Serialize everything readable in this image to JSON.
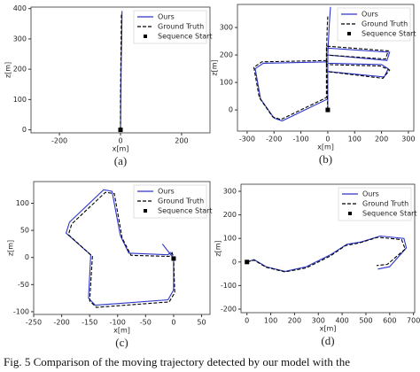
{
  "chart_data": [
    {
      "type": "line",
      "xlabel": "x[m]",
      "ylabel": "z[m]",
      "panel_label": "(a)",
      "xlim": [
        -293,
        293
      ],
      "ylim": [
        -10,
        405
      ],
      "xticks": [
        -200,
        0,
        200
      ],
      "yticks": [
        0,
        100,
        200,
        300,
        400
      ],
      "legend": "upper right",
      "series": [
        {
          "name": "Ours",
          "color": "#2b35c8",
          "x": [
            0,
            1,
            2,
            4,
            5
          ],
          "values": [
            0,
            100,
            200,
            300,
            392
          ]
        },
        {
          "name": "Ground Truth",
          "color": "#000000",
          "dashed": true,
          "x": [
            0,
            0,
            1,
            2,
            3
          ],
          "values": [
            0,
            100,
            200,
            300,
            385
          ]
        },
        {
          "name": "Sequence Start",
          "color": "#000000",
          "marker": "square",
          "x": [
            0
          ],
          "values": [
            0
          ]
        }
      ]
    },
    {
      "type": "line",
      "xlabel": "x[m]",
      "ylabel": "z[m]",
      "panel_label": "(b)",
      "xlim": [
        -336,
        320
      ],
      "ylim": [
        -77,
        384
      ],
      "xticks": [
        -300,
        -200,
        -100,
        0,
        100,
        200,
        300
      ],
      "yticks": [
        0,
        100,
        200,
        300
      ],
      "legend": "upper right",
      "series": [
        {
          "name": "Ours",
          "color": "#2b35c8",
          "x": [
            0,
            0,
            220,
            230,
            0,
            0,
            210,
            225,
            200,
            0,
            0,
            -240,
            -270,
            -250,
            -200,
            -170,
            0,
            0,
            5,
            10
          ],
          "values": [
            0,
            200,
            180,
            210,
            225,
            140,
            120,
            150,
            165,
            170,
            175,
            170,
            150,
            40,
            -30,
            -40,
            40,
            200,
            300,
            375
          ]
        },
        {
          "name": "Ground Truth",
          "color": "#000000",
          "dashed": true,
          "x": [
            0,
            -5,
            215,
            225,
            -5,
            -5,
            205,
            230,
            195,
            -5,
            -5,
            -245,
            -275,
            -255,
            -205,
            -175,
            -5,
            -5,
            -2,
            0
          ],
          "values": [
            0,
            200,
            185,
            215,
            232,
            140,
            115,
            145,
            160,
            165,
            180,
            175,
            155,
            45,
            -25,
            -35,
            45,
            200,
            300,
            340
          ]
        },
        {
          "name": "Sequence Start",
          "color": "#000000",
          "marker": "square",
          "x": [
            0
          ],
          "values": [
            0
          ]
        }
      ]
    },
    {
      "type": "line",
      "xlabel": "x[m]",
      "ylabel": "z[m]",
      "panel_label": "(c)",
      "xlim": [
        -250,
        65
      ],
      "ylim": [
        -105,
        140
      ],
      "xticks": [
        -250,
        -200,
        -150,
        -100,
        -50,
        0,
        50
      ],
      "yticks": [
        -100,
        -50,
        0,
        50,
        100
      ],
      "legend": "upper right",
      "series": [
        {
          "name": "Ours",
          "color": "#2b35c8",
          "x": [
            -20,
            -5,
            0,
            0,
            -10,
            -140,
            -152,
            -148,
            -192,
            -186,
            -125,
            -110,
            -95,
            -80,
            -10,
            -5
          ],
          "values": [
            25,
            5,
            0,
            -60,
            -78,
            -88,
            -75,
            5,
            45,
            65,
            125,
            122,
            40,
            8,
            5,
            10
          ]
        },
        {
          "name": "Ground Truth",
          "color": "#000000",
          "dashed": true,
          "x": [
            -3,
            0,
            2,
            -8,
            -138,
            -150,
            -145,
            -188,
            -182,
            -122,
            -106,
            -92,
            -76,
            -8,
            -3
          ],
          "values": [
            10,
            0,
            -65,
            -82,
            -92,
            -80,
            2,
            42,
            62,
            120,
            118,
            36,
            4,
            2,
            8
          ]
        },
        {
          "name": "Sequence Start",
          "color": "#000000",
          "marker": "square",
          "x": [
            0
          ],
          "values": [
            -2
          ]
        }
      ]
    },
    {
      "type": "line",
      "xlabel": "x[m]",
      "ylabel": "z[m]",
      "panel_label": "(d)",
      "xlim": [
        -25,
        705
      ],
      "ylim": [
        -215,
        330
      ],
      "xticks": [
        0,
        100,
        200,
        300,
        400,
        500,
        600,
        700
      ],
      "yticks": [
        -200,
        -100,
        0,
        100,
        200,
        300
      ],
      "legend": "upper right",
      "series": [
        {
          "name": "Ours",
          "color": "#2b35c8",
          "x": [
            0,
            30,
            80,
            160,
            250,
            350,
            420,
            480,
            560,
            660,
            670,
            600,
            550
          ],
          "values": [
            0,
            10,
            -20,
            -40,
            -20,
            30,
            75,
            85,
            110,
            100,
            60,
            -20,
            -30
          ]
        },
        {
          "name": "Ground Truth",
          "color": "#000000",
          "dashed": true,
          "x": [
            0,
            30,
            80,
            160,
            250,
            350,
            415,
            470,
            550,
            650,
            665,
            590,
            545
          ],
          "values": [
            0,
            8,
            -22,
            -42,
            -25,
            25,
            70,
            80,
            105,
            95,
            55,
            -10,
            -15
          ]
        },
        {
          "name": "Sequence Start",
          "color": "#000000",
          "marker": "square",
          "x": [
            0
          ],
          "values": [
            0
          ]
        }
      ]
    }
  ],
  "caption": "Fig. 5 Comparison of the moving trajectory detected by our model with the"
}
